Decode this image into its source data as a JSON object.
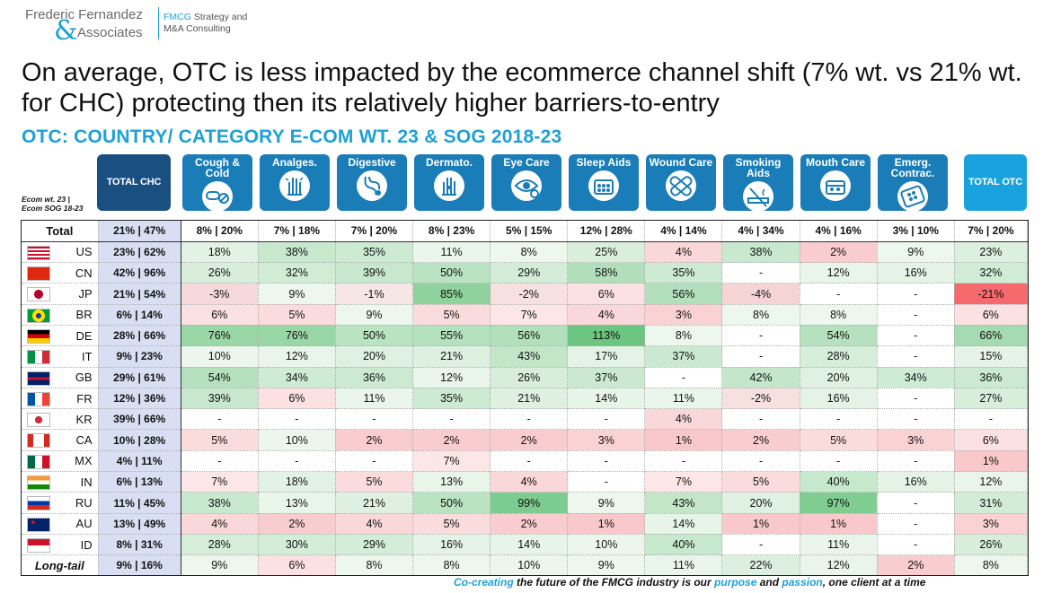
{
  "logo": {
    "line1": "Frederic Fernandez",
    "amp": "&",
    "line2": "Associates"
  },
  "tagline": {
    "part1": "FMCG",
    "part2": " Strategy and",
    "line2": "M&A Consulting"
  },
  "headline": "On average, OTC is less impacted by the ecommerce channel shift (7% wt. vs 21% wt. for CHC) protecting then its relatively higher barriers-to-entry",
  "subtitle": "OTC: COUNTRY/ CATEGORY E-COM WT. 23 & SOG 2018-23",
  "ecom_note": {
    "line1": "Ecom wt. 23 |",
    "line2": "Ecom SOG 18-23"
  },
  "colors": {
    "header_blue": "#1b7db8",
    "total_chc": "#1a4f82",
    "total_otc": "#19a2de",
    "accent": "#1ea1d6",
    "positive_max": "#6cc581",
    "negative_max": "#f0616a"
  },
  "headers": [
    {
      "label": "TOTAL CHC",
      "icon": "none"
    },
    {
      "label": "Cough & Cold",
      "icon": "pills-icon"
    },
    {
      "label": "Analges.",
      "icon": "pain-hand-icon"
    },
    {
      "label": "Digestive",
      "icon": "stomach-icon"
    },
    {
      "label": "Dermato.",
      "icon": "skin-hand-icon"
    },
    {
      "label": "Eye Care",
      "icon": "eye-icon"
    },
    {
      "label": "Sleep Aids",
      "icon": "sleep-pills-icon"
    },
    {
      "label": "Wound Care",
      "icon": "bandage-icon"
    },
    {
      "label": "Smoking Aids",
      "icon": "no-smoking-icon"
    },
    {
      "label": "Mouth Care",
      "icon": "mouth-care-icon"
    },
    {
      "label": "Emerg. Contrac.",
      "icon": "contraceptive-icon"
    },
    {
      "label": "TOTAL OTC",
      "icon": "none"
    }
  ],
  "rows": [
    {
      "name": "Total",
      "flag": "",
      "chc": "21% | 47%",
      "cells": [
        "8% | 20%",
        "7% | 18%",
        "7% | 20%",
        "8% | 23%",
        "5% | 15%",
        "12% | 28%",
        "4% | 14%",
        "4% | 34%",
        "4% | 16%",
        "3% | 10%",
        "7% | 20%"
      ]
    },
    {
      "name": "US",
      "flag": "us",
      "chc": "23% | 62%",
      "cells": [
        "18%",
        "38%",
        "35%",
        "11%",
        "8%",
        "25%",
        "4%",
        "38%",
        "2%",
        "9%",
        "23%"
      ]
    },
    {
      "name": "CN",
      "flag": "cn",
      "chc": "42% | 96%",
      "cells": [
        "26%",
        "32%",
        "39%",
        "50%",
        "29%",
        "58%",
        "35%",
        "-",
        "12%",
        "16%",
        "32%"
      ]
    },
    {
      "name": "JP",
      "flag": "jp",
      "chc": "21% | 54%",
      "cells": [
        "-3%",
        "9%",
        "-1%",
        "85%",
        "-2%",
        "6%",
        "56%",
        "-4%",
        "-",
        "-",
        "-21%"
      ]
    },
    {
      "name": "BR",
      "flag": "br",
      "chc": "6% | 14%",
      "cells": [
        "6%",
        "5%",
        "9%",
        "5%",
        "7%",
        "4%",
        "3%",
        "8%",
        "8%",
        "-",
        "6%"
      ]
    },
    {
      "name": "DE",
      "flag": "de",
      "chc": "28% | 66%",
      "cells": [
        "76%",
        "76%",
        "50%",
        "55%",
        "56%",
        "113%",
        "8%",
        "-",
        "54%",
        "-",
        "66%"
      ]
    },
    {
      "name": "IT",
      "flag": "it",
      "chc": "9% | 23%",
      "cells": [
        "10%",
        "12%",
        "20%",
        "21%",
        "43%",
        "17%",
        "37%",
        "-",
        "28%",
        "-",
        "15%"
      ]
    },
    {
      "name": "GB",
      "flag": "gb",
      "chc": "29% | 61%",
      "cells": [
        "54%",
        "34%",
        "36%",
        "12%",
        "26%",
        "37%",
        "-",
        "42%",
        "20%",
        "34%",
        "36%"
      ]
    },
    {
      "name": "FR",
      "flag": "fr",
      "chc": "12% | 36%",
      "cells": [
        "39%",
        "6%",
        "11%",
        "35%",
        "21%",
        "14%",
        "11%",
        "-2%",
        "16%",
        "-",
        "27%"
      ]
    },
    {
      "name": "KR",
      "flag": "kr",
      "chc": "39% | 66%",
      "cells": [
        "-",
        "-",
        "-",
        "-",
        "-",
        "-",
        "4%",
        "-",
        "-",
        "-",
        "-"
      ]
    },
    {
      "name": "CA",
      "flag": "ca",
      "chc": "10% | 28%",
      "cells": [
        "5%",
        "10%",
        "2%",
        "2%",
        "2%",
        "3%",
        "1%",
        "2%",
        "5%",
        "3%",
        "6%"
      ]
    },
    {
      "name": "MX",
      "flag": "mx",
      "chc": "4% | 11%",
      "cells": [
        "-",
        "-",
        "-",
        "7%",
        "-",
        "-",
        "-",
        "-",
        "-",
        "-",
        "1%"
      ]
    },
    {
      "name": "IN",
      "flag": "in",
      "chc": "6% | 13%",
      "cells": [
        "7%",
        "18%",
        "5%",
        "13%",
        "4%",
        "-",
        "7%",
        "5%",
        "40%",
        "16%",
        "12%"
      ]
    },
    {
      "name": "RU",
      "flag": "ru",
      "chc": "11% | 45%",
      "cells": [
        "38%",
        "13%",
        "21%",
        "50%",
        "99%",
        "9%",
        "43%",
        "20%",
        "97%",
        "-",
        "31%"
      ]
    },
    {
      "name": "AU",
      "flag": "au",
      "chc": "13% | 49%",
      "cells": [
        "4%",
        "2%",
        "4%",
        "5%",
        "2%",
        "1%",
        "14%",
        "1%",
        "1%",
        "-",
        "3%"
      ]
    },
    {
      "name": "ID",
      "flag": "id",
      "chc": "8% | 31%",
      "cells": [
        "28%",
        "30%",
        "29%",
        "16%",
        "14%",
        "10%",
        "40%",
        "-",
        "11%",
        "-",
        "26%"
      ]
    },
    {
      "name": "Long-tail",
      "flag": "",
      "chc": "9% | 16%",
      "cells": [
        "9%",
        "6%",
        "8%",
        "8%",
        "10%",
        "9%",
        "11%",
        "22%",
        "12%",
        "2%",
        "8%"
      ]
    }
  ],
  "footer": {
    "p1": "Co-creating",
    "p2": " the future of the FMCG industry is our ",
    "p3": "purpose",
    "p4": " and ",
    "p5": "passion",
    "p6": ", one client at a time"
  }
}
